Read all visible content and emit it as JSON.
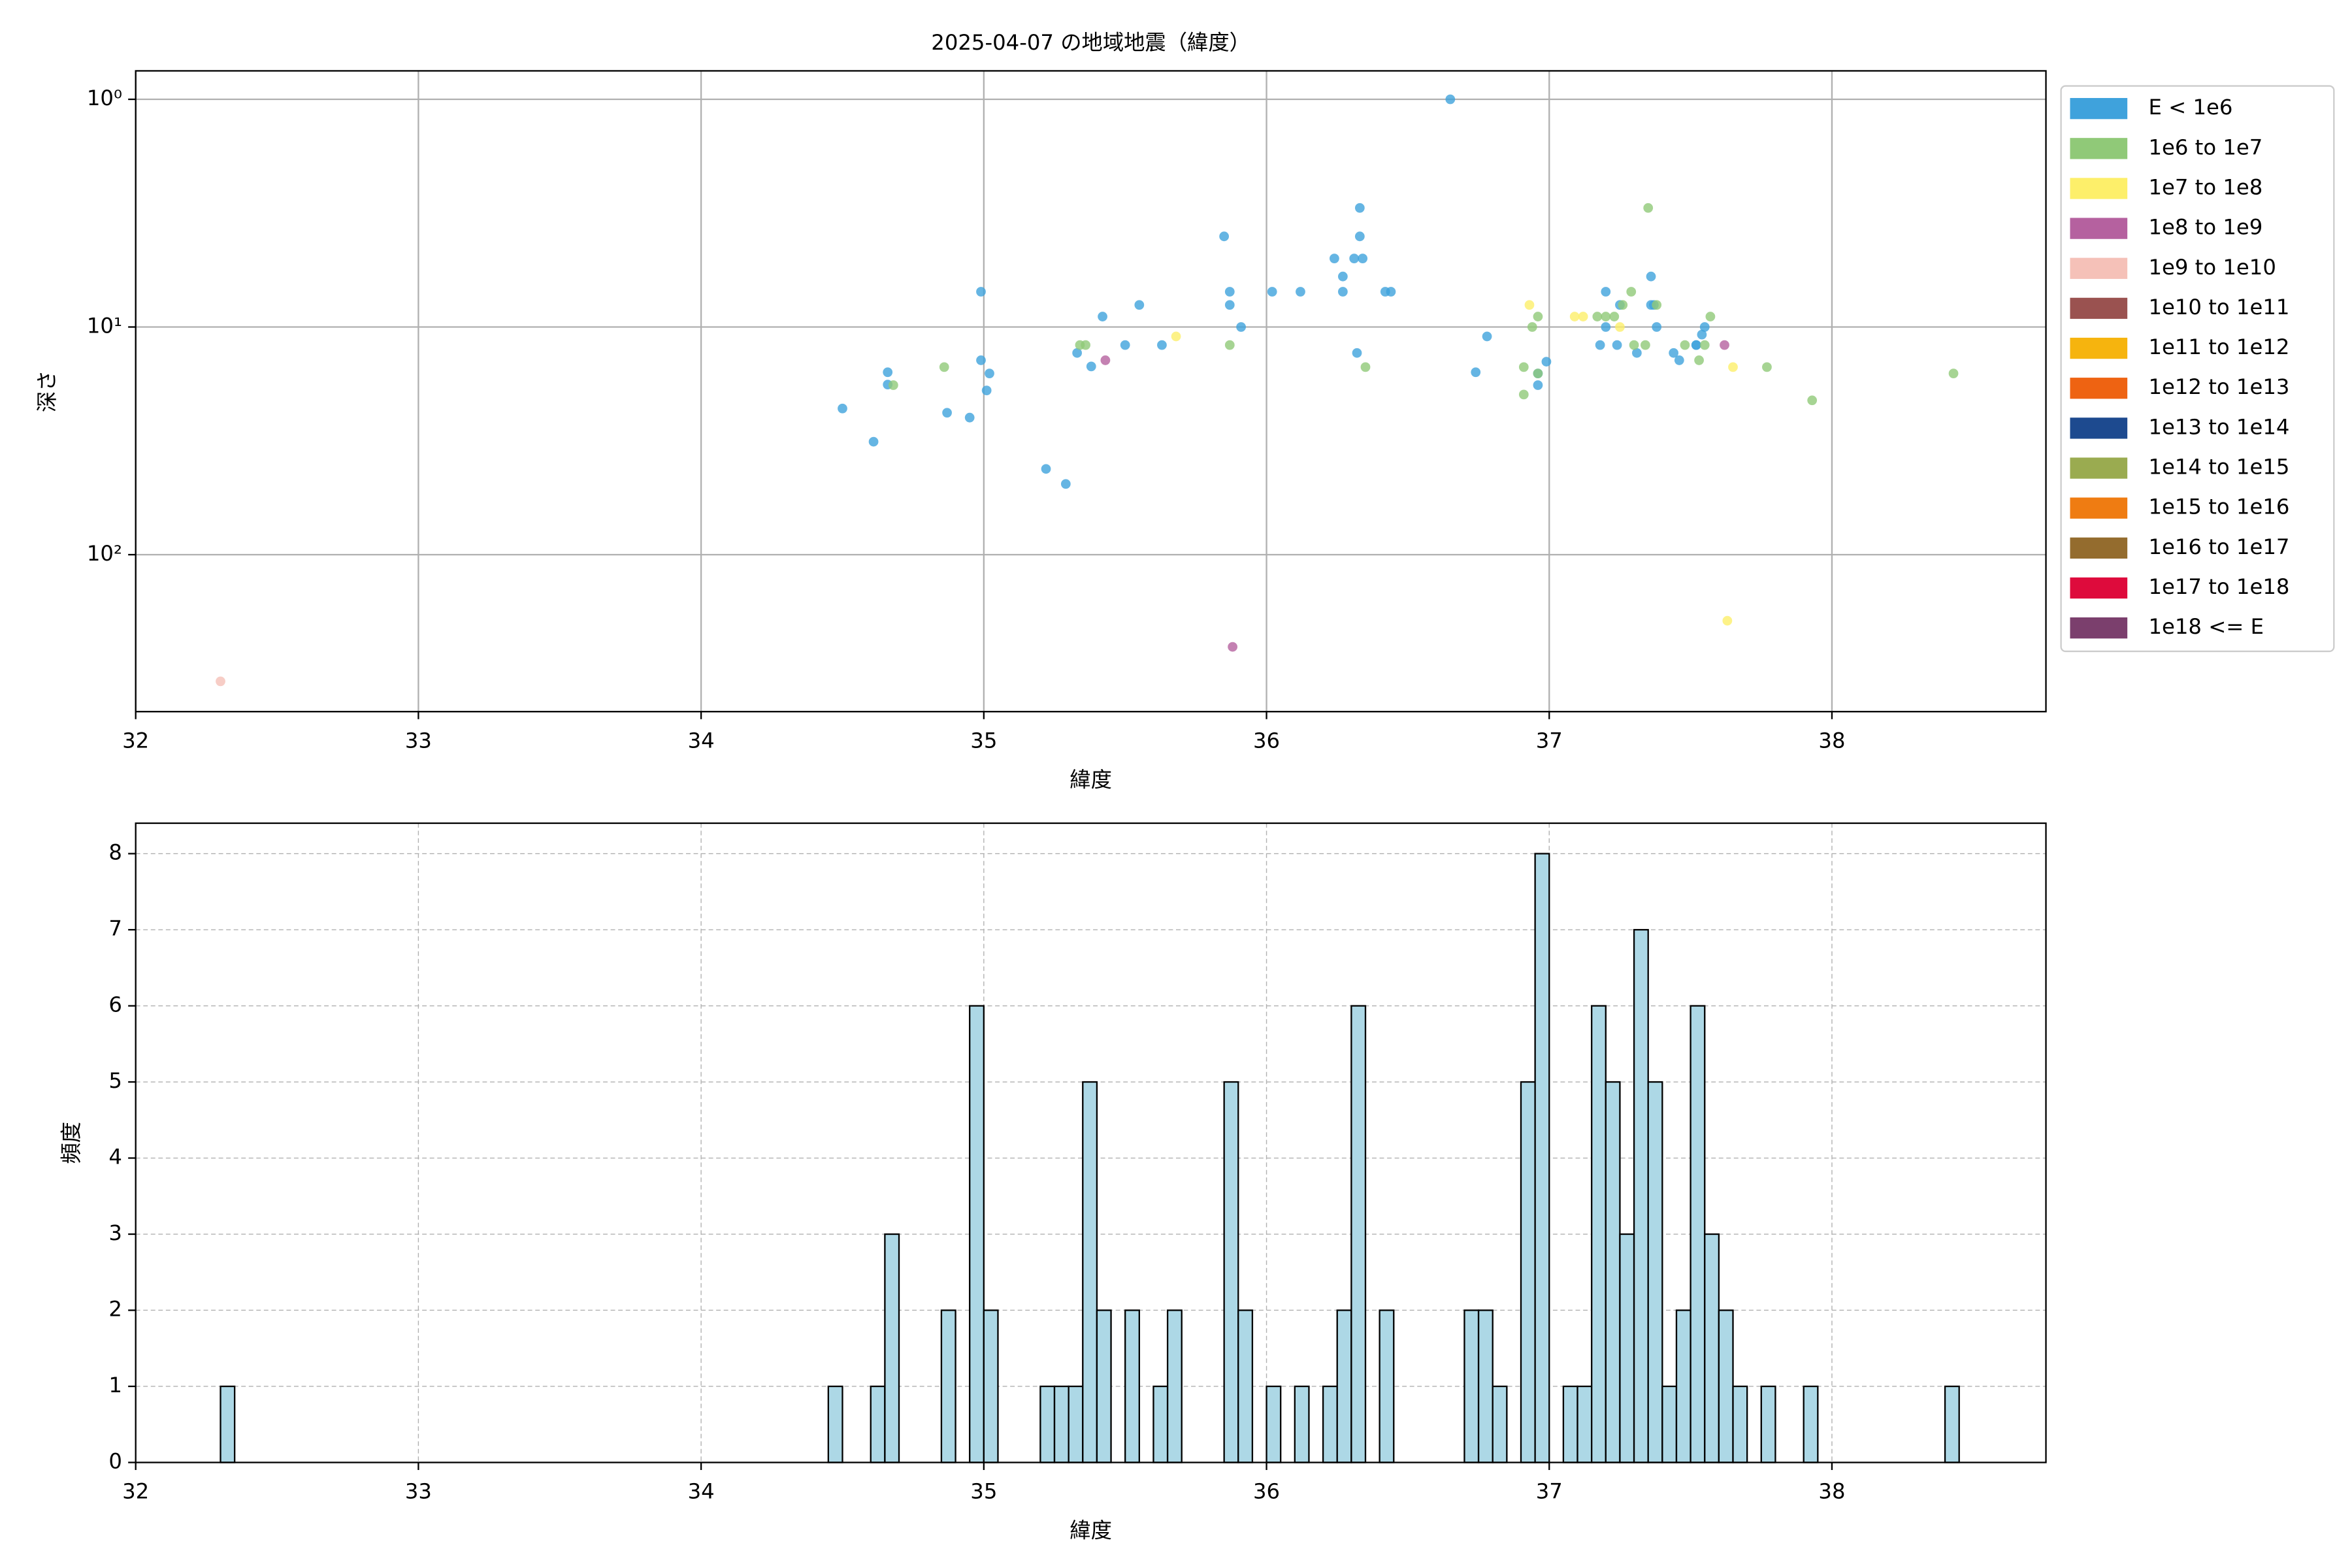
{
  "chart_data": [
    {
      "type": "scatter",
      "title": "2025-04-07 の地域地震（緯度）",
      "xlabel": "緯度",
      "ylabel": "深さ",
      "xlim": [
        32,
        38.757
      ],
      "xticks": [
        32,
        33,
        34,
        35,
        36,
        37,
        38
      ],
      "ylim": [
        0.75,
        489
      ],
      "y_scale": "log",
      "y_inverted": true,
      "yticks": [
        {
          "value": 1,
          "label": "10⁰"
        },
        {
          "value": 10,
          "label": "10¹"
        },
        {
          "value": 100,
          "label": "10²"
        }
      ],
      "grid": true,
      "legend": "outside-right",
      "series": [
        {
          "name": "E < 1e6",
          "color": "#3fa2dc",
          "x": [
            34.5,
            34.61,
            34.66,
            34.66,
            34.87,
            34.95,
            34.99,
            34.99,
            35.01,
            35.02,
            35.22,
            35.29,
            35.33,
            35.38,
            35.42,
            35.5,
            35.55,
            35.63,
            35.85,
            35.87,
            35.87,
            35.91,
            36.02,
            36.12,
            36.24,
            36.27,
            36.27,
            36.33,
            36.33,
            36.31,
            36.34,
            36.32,
            36.42,
            36.44,
            36.65,
            36.74,
            36.78,
            36.96,
            36.96,
            36.99,
            37.18,
            37.2,
            37.2,
            37.24,
            37.25,
            37.31,
            37.36,
            37.36,
            37.37,
            37.38,
            37.44,
            37.46,
            37.52,
            37.54,
            37.55,
            37.52
          ],
          "values": [
            22.8,
            31.9,
            15.8,
            17.9,
            23.8,
            25,
            7,
            14,
            19,
            16,
            42,
            48.9,
            13,
            14.9,
            9,
            12,
            8,
            12,
            4,
            7,
            8,
            10,
            7,
            7,
            5,
            6,
            7,
            3,
            4,
            5,
            5,
            13,
            7,
            7,
            1,
            15.8,
            11,
            18,
            16,
            14.2,
            12,
            7,
            10,
            12,
            8,
            13,
            6,
            8,
            8,
            10,
            13,
            14,
            12,
            10.8,
            10,
            12
          ]
        },
        {
          "name": "1e6 to 1e7",
          "color": "#90c978",
          "x": [
            34.86,
            34.68,
            35.34,
            35.36,
            35.87,
            36.35,
            36.91,
            36.91,
            36.94,
            36.96,
            36.96,
            37.17,
            37.2,
            37.23,
            37.26,
            37.29,
            37.3,
            37.34,
            37.35,
            37.38,
            37.48,
            37.53,
            37.55,
            37.57,
            37.77,
            37.93,
            38.43
          ],
          "values": [
            15,
            18,
            12,
            12,
            12,
            15,
            19.8,
            15,
            10,
            9,
            16,
            9,
            9,
            9,
            8,
            7,
            12,
            12,
            3,
            8,
            12,
            14,
            12,
            9,
            15,
            21,
            16
          ]
        },
        {
          "name": "1e7 to 1e8",
          "color": "#fdef6a",
          "x": [
            35.68,
            36.93,
            37.09,
            37.12,
            37.25,
            37.65,
            37.63
          ],
          "values": [
            11,
            8,
            9,
            9,
            10,
            15,
            195
          ]
        },
        {
          "name": "1e8 to 1e9",
          "color": "#b5619f",
          "x": [
            35.43,
            35.88,
            37.62
          ],
          "values": [
            14,
            254,
            12
          ]
        },
        {
          "name": "1e9 to 1e10",
          "color": "#f5c1b8",
          "x": [
            32.3
          ],
          "values": [
            360
          ]
        },
        {
          "name": "1e10 to 1e11",
          "color": "#9a5250",
          "x": [],
          "values": []
        },
        {
          "name": "1e11 to 1e12",
          "color": "#f6b40e",
          "x": [],
          "values": []
        },
        {
          "name": "1e12 to 1e13",
          "color": "#ee6312",
          "x": [],
          "values": []
        },
        {
          "name": "1e13 to 1e14",
          "color": "#1d4a8f",
          "x": [],
          "values": []
        },
        {
          "name": "1e14 to 1e15",
          "color": "#9aab50",
          "x": [],
          "values": []
        },
        {
          "name": "1e15 to 1e16",
          "color": "#ef7c12",
          "x": [],
          "values": []
        },
        {
          "name": "1e16 to 1e17",
          "color": "#946c2e",
          "x": [],
          "values": []
        },
        {
          "name": "1e17 to 1e18",
          "color": "#de0b3c",
          "x": [],
          "values": []
        },
        {
          "name": "1e18 <= E",
          "color": "#7b3f6d",
          "x": [],
          "values": []
        }
      ]
    },
    {
      "type": "histogram",
      "xlabel": "緯度",
      "ylabel": "頻度",
      "color": "#add8e6",
      "edgecolor": "#000000",
      "xlim": [
        32,
        38.757
      ],
      "xticks": [
        32,
        33,
        34,
        35,
        36,
        37,
        38
      ],
      "ylim": [
        0,
        8.4
      ],
      "yticks": [
        0,
        1,
        2,
        3,
        4,
        5,
        6,
        7,
        8
      ],
      "grid": true,
      "grid_style": "dashed",
      "bins": [
        32.3,
        32.35,
        32.4,
        32.45,
        32.5,
        32.55,
        32.6,
        32.65,
        32.7,
        32.75,
        32.8,
        32.85,
        32.9,
        32.95,
        33,
        33.05,
        33.1,
        33.15,
        33.2,
        33.25,
        33.3,
        33.35,
        33.4,
        33.45,
        33.5,
        33.55,
        33.6,
        33.65,
        33.7,
        33.75,
        33.8,
        33.85,
        33.9,
        33.95,
        34,
        34.05,
        34.1,
        34.15,
        34.2,
        34.25,
        34.3,
        34.35,
        34.4,
        34.45,
        34.5,
        34.55,
        34.6,
        34.65,
        34.7,
        34.75,
        34.8,
        34.85,
        34.9,
        34.95,
        35,
        35.05,
        35.1,
        35.15,
        35.2,
        35.25,
        35.3,
        35.35,
        35.4,
        35.45,
        35.5,
        35.55,
        35.6,
        35.65,
        35.7,
        35.75,
        35.8,
        35.85,
        35.9,
        35.95,
        36,
        36.05,
        36.1,
        36.15,
        36.2,
        36.25,
        36.3,
        36.35,
        36.4,
        36.45,
        36.5,
        36.55,
        36.6,
        36.65,
        36.7,
        36.75,
        36.8,
        36.85,
        36.9,
        36.95,
        37,
        37.05,
        37.1,
        37.15,
        37.2,
        37.25,
        37.3,
        37.35,
        37.4,
        37.45,
        37.5,
        37.55,
        37.6,
        37.65,
        37.7,
        37.75,
        37.8,
        37.85,
        37.9,
        37.95,
        38,
        38.05,
        38.1,
        38.15,
        38.2,
        38.25,
        38.3,
        38.35,
        38.4,
        38.45
      ],
      "counts": [
        1,
        0,
        0,
        0,
        0,
        0,
        0,
        0,
        0,
        0,
        0,
        0,
        0,
        0,
        0,
        0,
        0,
        0,
        0,
        0,
        0,
        0,
        0,
        0,
        0,
        0,
        0,
        0,
        0,
        0,
        0,
        0,
        0,
        0,
        0,
        0,
        0,
        0,
        0,
        0,
        0,
        0,
        0,
        1,
        0,
        0,
        1,
        3,
        0,
        0,
        0,
        2,
        0,
        6,
        2,
        0,
        0,
        0,
        1,
        1,
        1,
        5,
        2,
        0,
        2,
        0,
        1,
        2,
        0,
        0,
        0,
        5,
        2,
        0,
        1,
        0,
        1,
        0,
        1,
        2,
        6,
        0,
        2,
        0,
        0,
        0,
        0,
        0,
        2,
        2,
        1,
        0,
        5,
        8,
        0,
        1,
        1,
        6,
        5,
        3,
        7,
        5,
        1,
        2,
        6,
        3,
        2,
        1,
        0,
        1,
        0,
        0,
        1,
        0,
        0,
        0,
        0,
        0,
        0,
        0,
        0,
        0,
        1
      ]
    }
  ]
}
